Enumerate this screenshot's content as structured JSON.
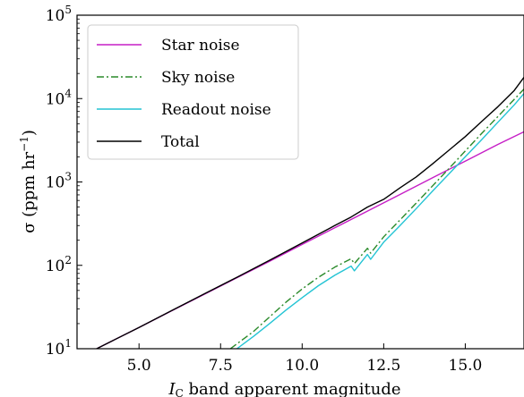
{
  "chart_data": {
    "type": "line",
    "xlabel_main": "I",
    "xlabel_sub": "C",
    "xlabel_rest": " band apparent magnitude",
    "ylabel": "σ (ppm hr",
    "ylabel_sup": "−1",
    "ylabel_close": ")",
    "xlim": [
      3.1,
      16.8
    ],
    "ylim": [
      10,
      100000
    ],
    "yscale": "log",
    "x_ticks": [
      5.0,
      7.5,
      10.0,
      12.5,
      15.0
    ],
    "x_tick_labels": [
      "5.0",
      "7.5",
      "10.0",
      "12.5",
      "15.0"
    ],
    "y_tick_base": "10",
    "y_tick_exponents": [
      "1",
      "2",
      "3",
      "4",
      "5"
    ],
    "y_ticks": [
      10,
      100,
      1000,
      10000,
      100000
    ],
    "legend_position": "top-left",
    "series": [
      {
        "name": "Star noise",
        "color": "#c61ec6",
        "dash": "solid",
        "x": [
          3.7,
          5.0,
          6.0,
          7.0,
          8.0,
          9.0,
          10.0,
          11.0,
          12.0,
          13.0,
          14.0,
          15.0,
          16.0,
          16.8
        ],
        "y": [
          10,
          18,
          28.5,
          45,
          71,
          112,
          178,
          282,
          447,
          708,
          1122,
          1778,
          2818,
          4000
        ]
      },
      {
        "name": "Sky noise",
        "color": "#2a8a2a",
        "dash": "dashdot",
        "x": [
          7.8,
          8.5,
          9.0,
          9.5,
          10.0,
          10.5,
          11.0,
          11.5,
          11.6,
          12.0,
          12.1,
          12.5,
          13.0,
          13.5,
          14.0,
          14.5,
          15.0,
          15.5,
          16.0,
          16.5,
          16.8
        ],
        "y": [
          10,
          16,
          24,
          36,
          52,
          72,
          95,
          120,
          105,
          160,
          140,
          220,
          350,
          560,
          900,
          1450,
          2350,
          3800,
          6100,
          9800,
          13000
        ]
      },
      {
        "name": "Readout noise",
        "color": "#24c4d4",
        "dash": "solid",
        "x": [
          8.0,
          8.5,
          9.0,
          9.5,
          10.0,
          10.5,
          11.0,
          11.5,
          11.6,
          12.0,
          12.1,
          12.5,
          13.0,
          13.5,
          14.0,
          14.5,
          15.0,
          15.5,
          16.0,
          16.5,
          16.8
        ],
        "y": [
          10,
          14,
          20,
          29,
          41,
          57,
          76,
          98,
          86,
          135,
          118,
          190,
          300,
          480,
          780,
          1250,
          2000,
          3200,
          5200,
          8400,
          11500
        ]
      },
      {
        "name": "Total",
        "color": "#000000",
        "dash": "solid",
        "x": [
          3.7,
          5.0,
          6.0,
          7.0,
          8.0,
          9.0,
          10.0,
          11.0,
          11.5,
          12.0,
          12.5,
          13.0,
          13.5,
          14.0,
          14.5,
          15.0,
          15.5,
          16.0,
          16.5,
          16.8
        ],
        "y": [
          10,
          18,
          28.6,
          45.5,
          72,
          115,
          185,
          300,
          380,
          500,
          620,
          850,
          1150,
          1650,
          2400,
          3500,
          5300,
          8000,
          12500,
          18000
        ]
      }
    ]
  }
}
